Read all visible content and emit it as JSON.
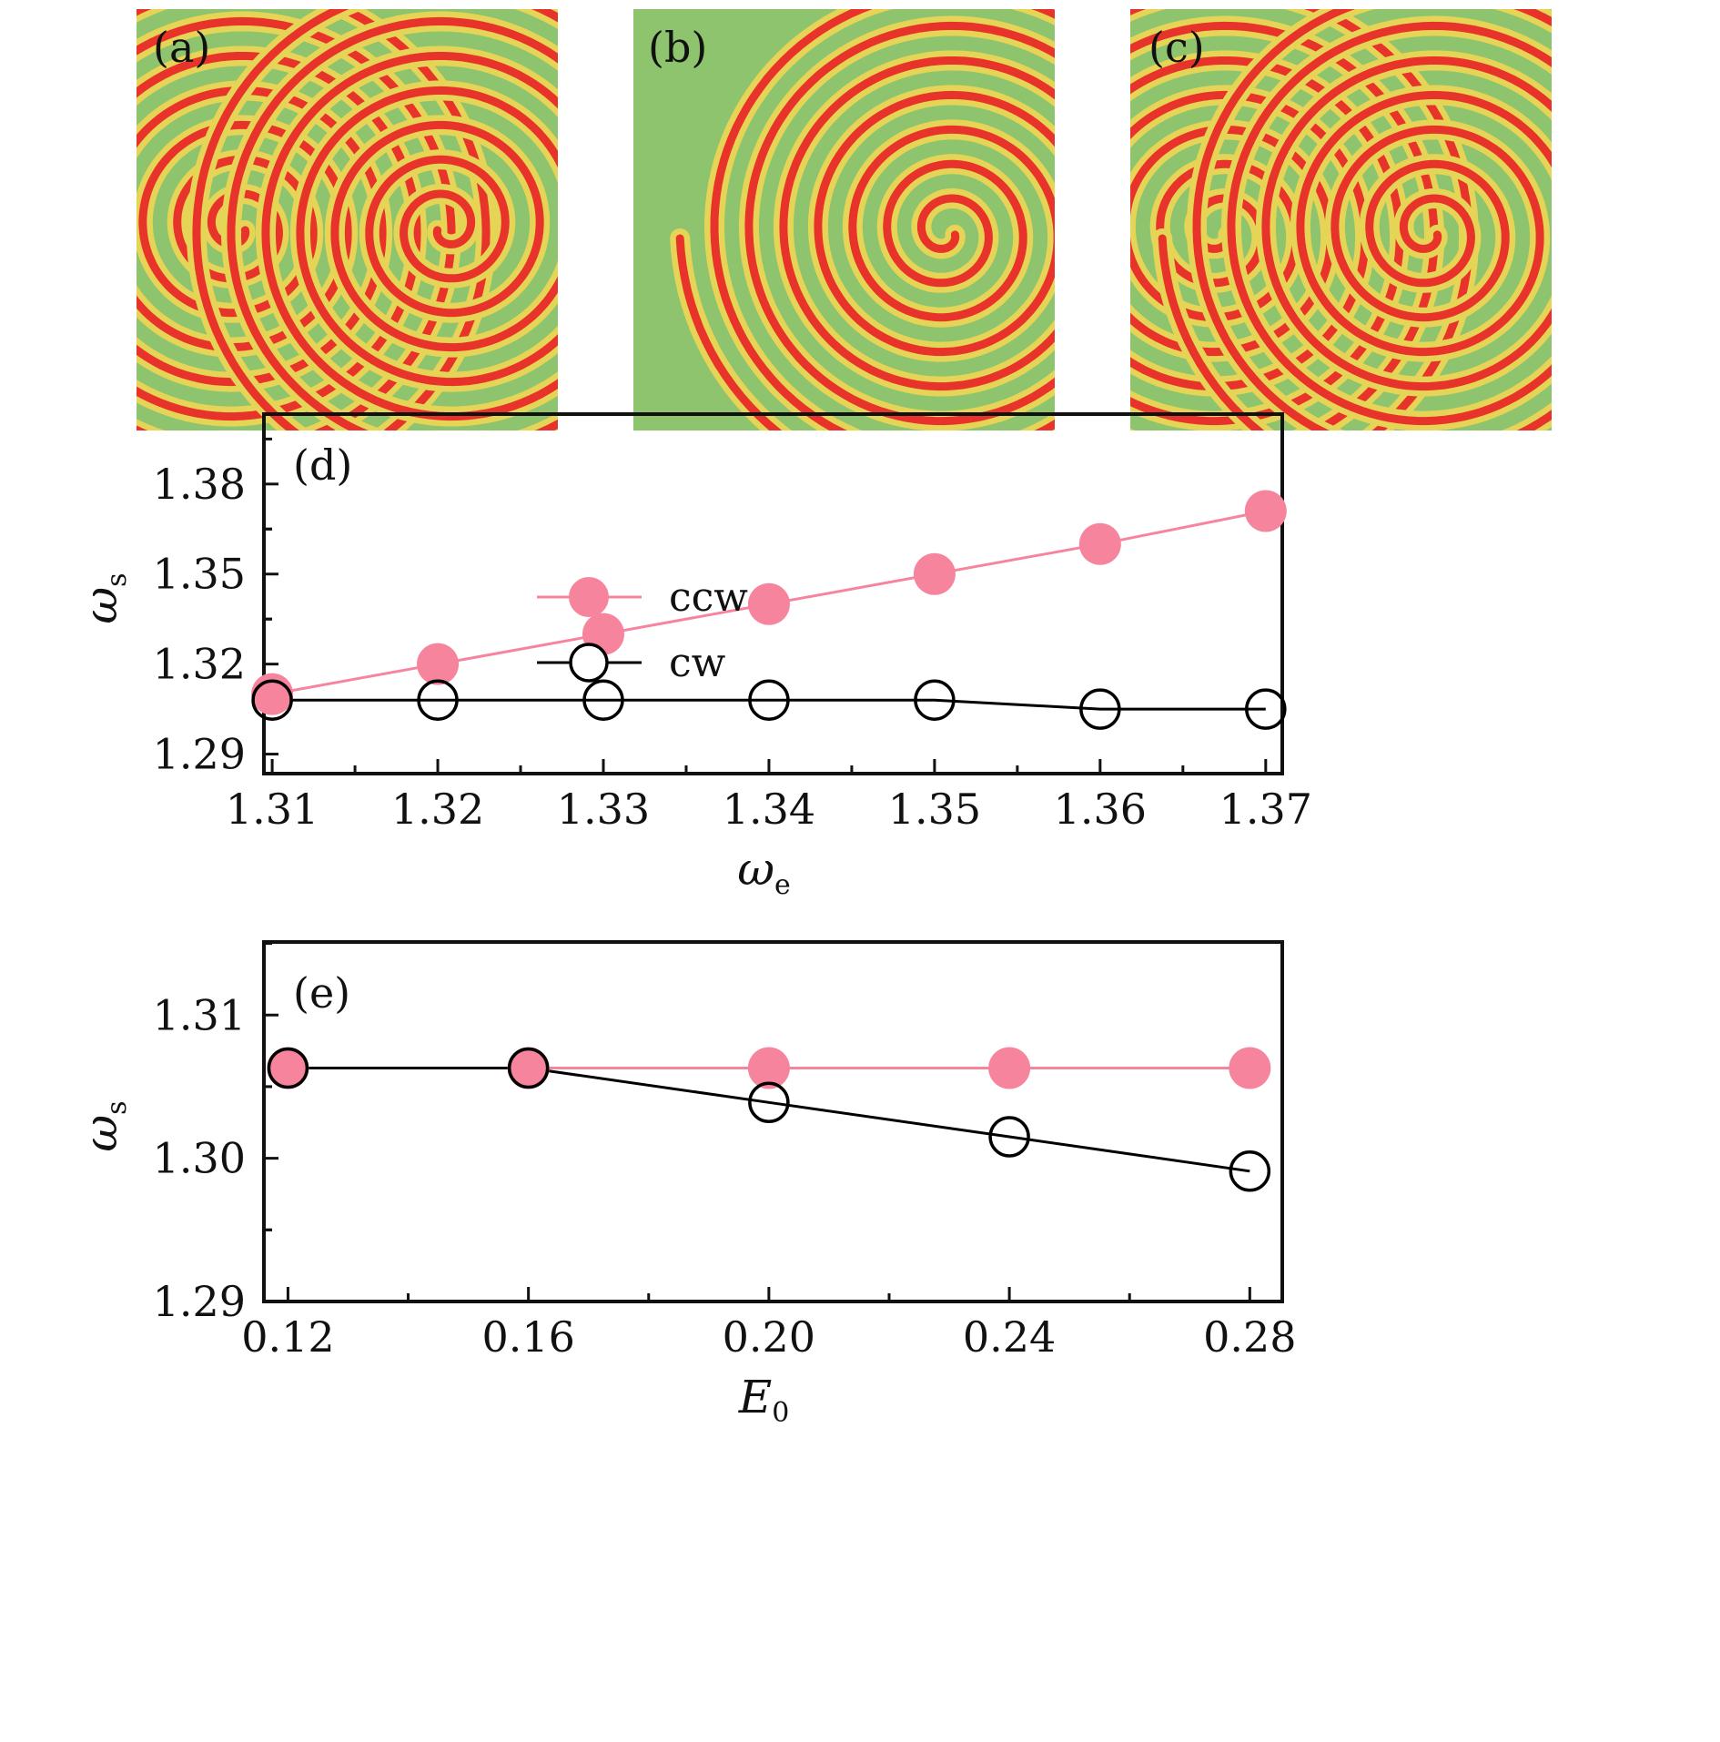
{
  "colors": {
    "ccw": "#f7849d",
    "cw": "#000000",
    "spiral_red": "#e8332a",
    "spiral_yellow": "#e6d457",
    "spiral_green": "#8fc46f"
  },
  "spiral_panels": [
    {
      "label": "(a)",
      "kind": "two-spirals-symmetric"
    },
    {
      "label": "(b)",
      "kind": "one-spiral-with-defect-left"
    },
    {
      "label": "(c)",
      "kind": "two-spirals-asymmetric"
    }
  ],
  "chart_data": [
    {
      "type": "line",
      "panel_label": "(d)",
      "xlabel": "ω",
      "xlabel_sub": "e",
      "ylabel": "ω",
      "ylabel_sub": "s",
      "x": [
        1.31,
        1.32,
        1.33,
        1.34,
        1.35,
        1.36,
        1.37
      ],
      "xlim": [
        1.3095,
        1.371
      ],
      "ylim": [
        1.2835,
        1.4033
      ],
      "xticks": [
        "1.31",
        "1.32",
        "1.33",
        "1.34",
        "1.35",
        "1.36",
        "1.37"
      ],
      "yticks": [
        "1.29",
        "1.32",
        "1.35",
        "1.38"
      ],
      "ytick_values": [
        1.29,
        1.32,
        1.35,
        1.38
      ],
      "series": [
        {
          "name": "ccw",
          "marker": "filled-circle",
          "values": [
            1.31,
            1.32,
            1.33,
            1.34,
            1.35,
            1.36,
            1.371
          ]
        },
        {
          "name": "cw",
          "marker": "open-circle",
          "values": [
            1.308,
            1.308,
            1.308,
            1.308,
            1.308,
            1.305,
            1.305
          ]
        }
      ],
      "legend": [
        "ccw",
        "cw"
      ],
      "legend_position": "top-left"
    },
    {
      "type": "line",
      "panel_label": "(e)",
      "xlabel": "E",
      "xlabel_sub": "0",
      "ylabel": "ω",
      "ylabel_sub": "s",
      "x": [
        0.12,
        0.16,
        0.2,
        0.24,
        0.28
      ],
      "xlim": [
        0.116,
        0.2854
      ],
      "ylim": [
        1.29,
        1.3151
      ],
      "xticks": [
        "0.12",
        "0.16",
        "0.20",
        "0.24",
        "0.28"
      ],
      "yticks": [
        "1.29",
        "1.30",
        "1.31"
      ],
      "ytick_values": [
        1.29,
        1.3,
        1.31
      ],
      "series": [
        {
          "name": "ccw",
          "marker": "filled-circle",
          "values": [
            1.3063,
            1.3063,
            1.3063,
            1.3063,
            1.3063
          ]
        },
        {
          "name": "cw",
          "marker": "open-circle",
          "values": [
            1.3063,
            1.3063,
            1.3039,
            1.3015,
            1.2991
          ]
        }
      ]
    }
  ]
}
